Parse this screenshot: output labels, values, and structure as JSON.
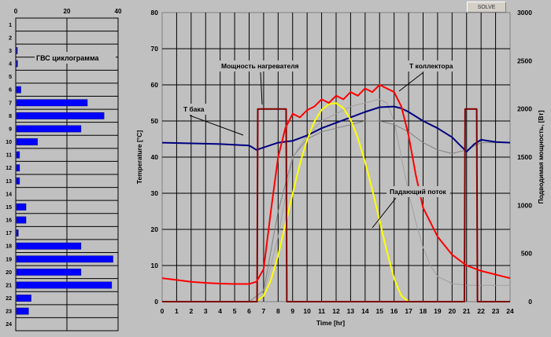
{
  "toolbar": {
    "solve_label": "SOLVE"
  },
  "chart_data": [
    {
      "type": "bar",
      "orientation": "horizontal",
      "title": "ГВС циклограмма",
      "categories": [
        "1",
        "2",
        "3",
        "4",
        "5",
        "6",
        "7",
        "8",
        "9",
        "10",
        "11",
        "12",
        "13",
        "14",
        "15",
        "16",
        "17",
        "18",
        "19",
        "20",
        "21",
        "22",
        "23",
        "24"
      ],
      "values": [
        0,
        0,
        0.5,
        0.7,
        0,
        2,
        28,
        34.5,
        25.5,
        8.5,
        1.5,
        1.5,
        1.5,
        0,
        4,
        4,
        1,
        25.5,
        38,
        25.5,
        37.5,
        6,
        5,
        0
      ],
      "xlim": [
        0,
        40
      ],
      "xticks": [
        0,
        20,
        40
      ],
      "grid": true,
      "colors": {
        "bar": "#0000ff",
        "plot_bg": "#c0c0c0"
      }
    },
    {
      "type": "line",
      "xlabel": "Time [hr]",
      "ylabel": "Temperature [°C]",
      "y2label": "Подводимая мощность, [Вт]",
      "xlim": [
        0,
        24
      ],
      "ylim": [
        0,
        80
      ],
      "y2lim": [
        0,
        3000
      ],
      "xticks": [
        0,
        1,
        2,
        3,
        4,
        5,
        6,
        7,
        8,
        9,
        10,
        11,
        12,
        13,
        14,
        15,
        16,
        17,
        18,
        19,
        20,
        21,
        22,
        23,
        24
      ],
      "yticks": [
        0,
        10,
        20,
        30,
        40,
        50,
        60,
        70,
        80
      ],
      "y2ticks": [
        0,
        500,
        1000,
        1500,
        2000,
        2500,
        3000
      ],
      "grid": true,
      "series": [
        {
          "name": "T бака",
          "axis": "y",
          "color": "#000080",
          "x": [
            0,
            2,
            4,
            6,
            6.3,
            6.5,
            8,
            9,
            10,
            11,
            12,
            13,
            14,
            15,
            16,
            16.5,
            17,
            18,
            19,
            20,
            20.5,
            21,
            21.5,
            22,
            23,
            24
          ],
          "y": [
            44,
            43.8,
            43.6,
            43.2,
            42.5,
            42,
            44,
            44.5,
            46,
            48,
            49.5,
            51,
            52.5,
            53.8,
            54,
            53.5,
            52.5,
            50,
            48,
            45.5,
            43.5,
            41.5,
            43.5,
            44.8,
            44.2,
            44
          ]
        },
        {
          "name": "T коллектора",
          "axis": "y",
          "color": "#ff0000",
          "x": [
            0,
            1,
            2,
            3,
            4,
            5,
            6,
            6.5,
            7,
            7.5,
            8,
            8.5,
            9,
            9.5,
            10,
            10.5,
            11,
            11.5,
            12,
            12.5,
            13,
            13.5,
            14,
            14.5,
            15,
            15.5,
            16,
            16.5,
            17,
            17.5,
            18,
            19,
            20,
            21,
            22,
            23,
            24
          ],
          "y": [
            6.5,
            6,
            5.5,
            5.2,
            5,
            4.9,
            4.9,
            5.5,
            9,
            25,
            40,
            48,
            52,
            51,
            53,
            54,
            56,
            55,
            57,
            56,
            58,
            57,
            59,
            58,
            60,
            59,
            58,
            54,
            46,
            35,
            26,
            18,
            13,
            10,
            8.5,
            7.5,
            6.5
          ]
        },
        {
          "name": "Мощность нагревателя",
          "axis": "y2",
          "color": "#800000",
          "x": [
            0,
            6.55,
            6.6,
            8.55,
            8.6,
            20.85,
            20.9,
            21.7,
            21.75,
            24
          ],
          "y": [
            0,
            0,
            2000,
            2000,
            0,
            0,
            2000,
            2000,
            0,
            0
          ]
        },
        {
          "name": "Падающий поток",
          "axis": "y2",
          "color": "#ffff00",
          "x": [
            6.5,
            7,
            7.5,
            8,
            8.5,
            9,
            9.5,
            10,
            10.5,
            11,
            11.5,
            12,
            12.5,
            13,
            13.5,
            14,
            14.5,
            15,
            15.5,
            16,
            16.5,
            17,
            17.5
          ],
          "y": [
            0,
            60,
            220,
            480,
            800,
            1120,
            1430,
            1680,
            1870,
            1990,
            2050,
            2060,
            2010,
            1890,
            1700,
            1450,
            1160,
            840,
            520,
            240,
            60,
            0,
            0
          ]
        },
        {
          "axis": "y",
          "color": "#808080",
          "x": [
            0,
            6,
            7,
            8,
            9,
            10,
            11,
            12,
            13,
            14,
            15,
            16,
            17,
            18,
            19,
            20,
            21,
            22,
            23,
            24
          ],
          "y": [
            0,
            0,
            3,
            25,
            40,
            45,
            47,
            48,
            49,
            50,
            50,
            49,
            47,
            44,
            42,
            41,
            42,
            44,
            44,
            44
          ]
        },
        {
          "axis": "y",
          "color": "#a0a0a0",
          "x": [
            0,
            6.5,
            7,
            8,
            9,
            10,
            11,
            12,
            13,
            14,
            15,
            15.5,
            16,
            16.5,
            17,
            17.5,
            18,
            18.5,
            19,
            20,
            21,
            22,
            23,
            24
          ],
          "y": [
            0,
            0,
            2,
            18,
            40,
            46,
            50,
            52,
            54,
            55,
            56,
            55,
            50,
            40,
            30,
            22,
            15,
            10,
            7,
            5,
            4.5,
            4.5,
            4.5,
            4.5
          ]
        }
      ],
      "annotations": [
        {
          "text": "Т бака"
        },
        {
          "text": "Мощность нагревателя"
        },
        {
          "text": "Т коллектора"
        },
        {
          "text": "Падающий поток"
        }
      ]
    }
  ]
}
